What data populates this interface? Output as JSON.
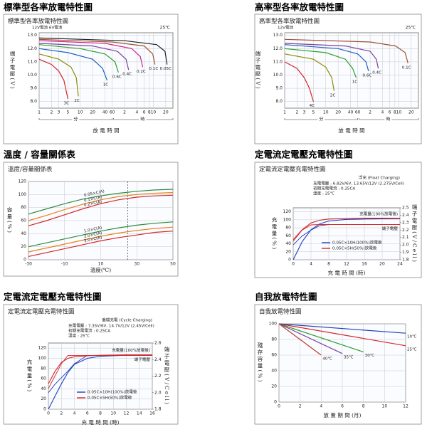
{
  "chart_data": [
    {
      "type": "line",
      "title": "標準型各率放電特性圖",
      "subtitle": "標準型各率放電特性圖",
      "battery_label": "12V電池 6V電池",
      "temperature": "25℃",
      "ylabel": "端子電壓(V)",
      "xlabel": "放 電 時 間",
      "minutes_label": "分",
      "hours_label": "時",
      "xscale": "log",
      "grid": true,
      "label_position": "end",
      "xlim": [
        1,
        1800
      ],
      "xticks": [
        1,
        2,
        3,
        5,
        10,
        20,
        40,
        60,
        {
          "value": 120,
          "label": "2"
        },
        {
          "value": 240,
          "label": "4"
        },
        {
          "value": 360,
          "label": "6"
        },
        {
          "value": 480,
          "label": "8"
        },
        {
          "value": 600,
          "label": "10"
        },
        {
          "value": 1200,
          "label": "20"
        }
      ],
      "ylim": [
        7.5,
        13.2
      ],
      "yticks": [
        {
          "value": 13,
          "label": "13.0"
        },
        {
          "value": 12,
          "label": "12.0"
        },
        {
          "value": 11,
          "label": "11.0"
        },
        {
          "value": 10,
          "label": "10.0"
        },
        {
          "value": 9,
          "label": "9.0"
        },
        {
          "value": 8,
          "label": "8.0"
        }
      ],
      "series": [
        {
          "name": "3C",
          "color": "#d62728",
          "x": [
            1,
            2,
            3,
            4,
            5
          ],
          "values": [
            11.2,
            10.8,
            10.3,
            9.6,
            8.2
          ]
        },
        {
          "name": "2C",
          "color": "#8c8c00",
          "x": [
            1,
            3,
            6,
            8,
            9
          ],
          "values": [
            11.6,
            11.2,
            10.6,
            9.8,
            8.4
          ]
        },
        {
          "name": "1C",
          "color": "#1f5fbf",
          "x": [
            1,
            5,
            20,
            35,
            45
          ],
          "values": [
            12.0,
            11.7,
            11.2,
            10.5,
            9.6
          ]
        },
        {
          "name": "0.6C",
          "color": "#2ca02c",
          "x": [
            1,
            10,
            40,
            70,
            85
          ],
          "values": [
            12.3,
            12.0,
            11.6,
            11.0,
            10.2
          ]
        },
        {
          "name": "0.4C",
          "color": "#7b3fa0",
          "x": [
            1,
            20,
            80,
            130,
            150
          ],
          "values": [
            12.4,
            12.2,
            11.8,
            11.2,
            10.4
          ]
        },
        {
          "name": "0.2C",
          "color": "#d02090",
          "x": [
            1,
            40,
            180,
            290,
            330
          ],
          "values": [
            12.6,
            12.4,
            12.0,
            11.4,
            10.6
          ]
        },
        {
          "name": "0.1C",
          "color": "#a0522d",
          "x": [
            1,
            60,
            360,
            580,
            660
          ],
          "values": [
            12.7,
            12.5,
            12.2,
            11.6,
            10.8
          ]
        },
        {
          "name": "0.05C",
          "color": "#222222",
          "x": [
            1,
            120,
            720,
            1150,
            1300
          ],
          "values": [
            12.8,
            12.6,
            12.3,
            11.8,
            10.8
          ]
        }
      ]
    },
    {
      "type": "line",
      "title": "高率型各率放電特性圖",
      "subtitle": "高率型各率放電特性圖",
      "battery_label": "12V電池",
      "temperature": "25℃",
      "ylabel": "端子電壓(V)",
      "xlabel": "放 電 時 間",
      "minutes_label": "分",
      "hours_label": "時",
      "xscale": "log",
      "grid": true,
      "label_position": "end",
      "xlim": [
        1,
        1800
      ],
      "xticks": [
        1,
        2,
        3,
        5,
        10,
        20,
        40,
        60,
        {
          "value": 120,
          "label": "2"
        },
        {
          "value": 240,
          "label": "4"
        },
        {
          "value": 360,
          "label": "6"
        },
        {
          "value": 480,
          "label": "8"
        },
        {
          "value": 600,
          "label": "10"
        },
        {
          "value": 1200,
          "label": "20"
        }
      ],
      "ylim": [
        7.5,
        13.2
      ],
      "yticks": [
        {
          "value": 13,
          "label": "13.0"
        },
        {
          "value": 12,
          "label": "12.0"
        },
        {
          "value": 11,
          "label": "11.0"
        },
        {
          "value": 10,
          "label": "10.0"
        },
        {
          "value": 9,
          "label": "9.0"
        },
        {
          "value": 8,
          "label": "8.0"
        }
      ],
      "series": [
        {
          "name": "4C",
          "color": "#d62728",
          "x": [
            1,
            2,
            3,
            4,
            5
          ],
          "values": [
            11.0,
            10.5,
            9.8,
            9.0,
            8.0
          ]
        },
        {
          "name": "2C",
          "color": "#8c8c00",
          "x": [
            1,
            5,
            10,
            14,
            16
          ],
          "values": [
            11.6,
            11.2,
            10.6,
            9.8,
            8.8
          ]
        },
        {
          "name": "1C",
          "color": "#2ca02c",
          "x": [
            1,
            10,
            30,
            45,
            55
          ],
          "values": [
            12.0,
            11.7,
            11.2,
            10.5,
            9.8
          ]
        },
        {
          "name": "0.6C",
          "color": "#1f5fbf",
          "x": [
            1,
            20,
            60,
            95,
            110
          ],
          "values": [
            12.3,
            12.0,
            11.6,
            11.0,
            10.3
          ]
        },
        {
          "name": "0.4C",
          "color": "#7b3fa0",
          "x": [
            1,
            30,
            120,
            170,
            190
          ],
          "values": [
            12.4,
            12.2,
            11.8,
            11.2,
            10.5
          ]
        },
        {
          "name": "0.1C",
          "color": "#a0522d",
          "x": [
            1,
            120,
            500,
            850,
            1000
          ],
          "values": [
            12.7,
            12.5,
            12.2,
            11.7,
            10.9
          ]
        }
      ]
    },
    {
      "type": "line",
      "title": "溫度 / 容量關係表",
      "subtitle": "溫度/容量關係表",
      "ylabel": "容量(%)",
      "xlabel": "溫度(℃)",
      "grid": true,
      "label_position": "mid",
      "xlim": [
        -30,
        50
      ],
      "xticks": [
        -30,
        -10,
        10,
        30,
        50
      ],
      "reference_x": 25,
      "ylim": [
        0,
        120
      ],
      "yticks": [
        0,
        20,
        40,
        60,
        80,
        100,
        120
      ],
      "x": [
        -30,
        -20,
        -10,
        0,
        10,
        20,
        30,
        40,
        50
      ],
      "series": [
        {
          "name": "0.05×C(A)",
          "color": "#2e8b3e",
          "values": [
            70,
            78,
            86,
            93,
            98,
            102,
            105,
            107,
            108
          ]
        },
        {
          "name": "0.1×C(A)",
          "color": "#e8811c",
          "values": [
            60,
            68,
            77,
            85,
            92,
            97,
            100,
            102,
            103
          ]
        },
        {
          "name": "0.2×C(A)",
          "color": "#d62728",
          "values": [
            52,
            60,
            69,
            78,
            86,
            92,
            96,
            98,
            99
          ]
        },
        {
          "name": "1.0×C(A)",
          "color": "#2e8b3e",
          "values": [
            20,
            26,
            32,
            38,
            44,
            49,
            53,
            56,
            58
          ]
        },
        {
          "name": "2.0×C(A)",
          "color": "#e8811c",
          "values": [
            12,
            18,
            24,
            30,
            36,
            41,
            45,
            48,
            50
          ]
        },
        {
          "name": "3.0×C(A)",
          "color": "#d62728",
          "values": [
            5,
            11,
            17,
            23,
            29,
            34,
            38,
            42,
            44
          ]
        }
      ]
    },
    {
      "type": "charging",
      "title": "定電流定電壓充電特性圖",
      "subtitle": "定電流定電壓充電特性圖",
      "mode_label": "浮充 (Float Charging)",
      "info": [
        "充電電壓 : 6.82V/6V, 13.65V/12V (2.275V/Cell)",
        "初期充電電流 : 0.25CA",
        "溫度 : 25℃"
      ],
      "ylabel": "充電量(%)",
      "y2label": "端子電壓(V/Cell)",
      "xlabel": "充 電 時 間 (時)",
      "grid": true,
      "xlim": [
        0,
        24
      ],
      "xticks": [
        0,
        4,
        8,
        12,
        16,
        20,
        24
      ],
      "ylim": [
        0,
        130
      ],
      "yticks": [
        0,
        20,
        40,
        60,
        80,
        100,
        120
      ],
      "y2lim": [
        1.8,
        2.5
      ],
      "y2ticks": [
        1.8,
        1.9,
        {
          "value": 2.0,
          "label": "2.0"
        },
        2.1,
        2.2,
        2.3,
        2.4,
        2.5
      ],
      "annotations": [
        "充電量(100%放電後)",
        "端子電壓"
      ],
      "x": [
        0,
        2,
        4,
        6,
        8,
        12,
        16,
        24
      ],
      "series": [
        {
          "name": "0.05C×10H(100%)放電後",
          "color": "#1f3fbf",
          "values": [
            0,
            45,
            75,
            90,
            97,
            101,
            102,
            103
          ],
          "voltage": [
            2.0,
            2.12,
            2.2,
            2.26,
            2.275,
            2.275,
            2.275,
            2.275
          ]
        },
        {
          "name": "0.05C×5H(50%)放電後",
          "color": "#d62728",
          "values": [
            50,
            75,
            92,
            99,
            102,
            103,
            104,
            104
          ],
          "voltage": [
            2.05,
            2.2,
            2.27,
            2.275,
            2.275,
            2.275,
            2.275,
            2.275
          ]
        }
      ]
    },
    {
      "type": "charging",
      "title": "定電流定電壓充電特性圖",
      "subtitle": "定電流定電壓充電特性圖",
      "mode_label": "循環充電 (Cycle Charging)",
      "info": [
        "充電電壓 : 7.35V/6V, 14.7V/12V (2.45V/Cell)",
        "初期充電電流 : 0.25CA",
        "溫度 : 25℃"
      ],
      "ylabel": "充電量(%)",
      "y2label": "端子電壓(V/Cell)",
      "xlabel": "充 電 時 間 (時)",
      "grid": true,
      "xlim": [
        0,
        16
      ],
      "xticks": [
        0,
        2,
        4,
        6,
        8,
        10,
        12,
        14,
        16
      ],
      "ylim": [
        0,
        130
      ],
      "yticks": [
        0,
        20,
        40,
        60,
        80,
        100,
        120
      ],
      "y2lim": [
        1.8,
        2.6
      ],
      "y2ticks": [
        1.8,
        {
          "value": 2.0,
          "label": "2.0"
        },
        2.2,
        2.4,
        2.6
      ],
      "annotations": [
        "充電量(100%放電後)",
        "端子電壓"
      ],
      "x": [
        0,
        1,
        2,
        3,
        4,
        6,
        8,
        12,
        16
      ],
      "series": [
        {
          "name": "0.05C×10H(100%)放電後",
          "color": "#1f3fbf",
          "values": [
            0,
            25,
            50,
            72,
            88,
            100,
            104,
            106,
            107
          ],
          "voltage": [
            2.0,
            2.1,
            2.18,
            2.26,
            2.35,
            2.45,
            2.45,
            2.45,
            2.45
          ]
        },
        {
          "name": "0.05C×5H(50%)放電後",
          "color": "#d62728",
          "values": [
            50,
            74,
            92,
            100,
            103,
            105,
            106,
            107,
            107
          ],
          "voltage": [
            2.05,
            2.2,
            2.35,
            2.45,
            2.45,
            2.45,
            2.45,
            2.45,
            2.45
          ]
        }
      ]
    },
    {
      "type": "line",
      "title": "自我放電特性圖",
      "subtitle": "自我放電特性圖",
      "ylabel": "殘存容量(%)",
      "xlabel": "放 置 期 間 (月)",
      "grid": true,
      "label_position": "end",
      "xlim": [
        0,
        12
      ],
      "xticks": [
        0,
        2,
        4,
        6,
        8,
        10,
        12
      ],
      "ylim": [
        0,
        100
      ],
      "yticks": [
        0,
        20,
        40,
        60,
        80,
        100
      ],
      "series": [
        {
          "name": "10℃",
          "color": "#1f3fbf",
          "x": [
            0,
            12
          ],
          "values": [
            100,
            88
          ]
        },
        {
          "name": "25℃",
          "color": "#d62728",
          "x": [
            0,
            12
          ],
          "values": [
            100,
            72
          ]
        },
        {
          "name": "30℃",
          "color": "#2ca02c",
          "x": [
            0,
            8
          ],
          "values": [
            100,
            64
          ]
        },
        {
          "name": "35℃",
          "color": "#7b3fa0",
          "x": [
            0,
            6
          ],
          "values": [
            100,
            62
          ]
        },
        {
          "name": "40℃",
          "color": "#c0392b",
          "x": [
            0,
            4
          ],
          "values": [
            100,
            60
          ]
        }
      ]
    }
  ]
}
